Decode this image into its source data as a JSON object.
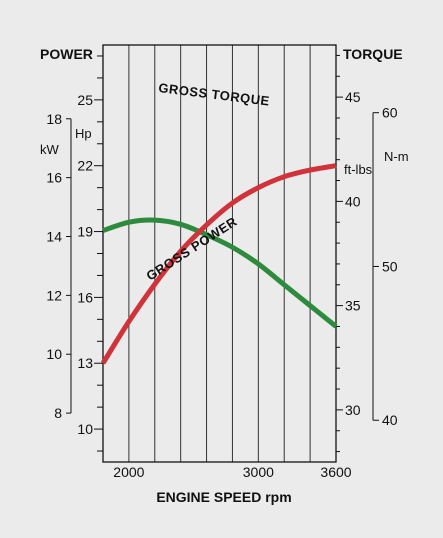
{
  "chart_data": {
    "type": "line",
    "left_title": "POWER",
    "right_title": "TORQUE",
    "xlabel": "ENGINE SPEED rpm",
    "x_ticks": [
      2000,
      3000,
      3600
    ],
    "xlim": [
      1800,
      3600
    ],
    "hp_label": "Hp",
    "hp_ticks": [
      25,
      22,
      19,
      16,
      13,
      10
    ],
    "ylim_hp": [
      8.5,
      27.5
    ],
    "kw_label": "kW",
    "kw_ticks": [
      18,
      16,
      14,
      12,
      10,
      8
    ],
    "ftlbs_label": "ft-lbs",
    "ftlbs_ticks": [
      45,
      40,
      35,
      30
    ],
    "ylim_ftlbs": [
      27.5,
      47.5
    ],
    "nm_label": "N-m",
    "nm_ticks": [
      60,
      50,
      40
    ],
    "series": [
      {
        "name": "GROSS TORQUE",
        "unit": "ft-lbs",
        "color": "#2e8b3e",
        "x": [
          1800,
          2000,
          2200,
          2400,
          2600,
          2800,
          3000,
          3200,
          3400,
          3600
        ],
        "y": [
          38.6,
          39.0,
          39.1,
          38.9,
          38.4,
          37.8,
          37.0,
          36.0,
          35.0,
          34.0
        ]
      },
      {
        "name": "GROSS POWER",
        "unit": "Hp",
        "color": "#d0333a",
        "x": [
          1800,
          2000,
          2200,
          2400,
          2600,
          2800,
          3000,
          3200,
          3400,
          3600
        ],
        "y": [
          13.0,
          14.9,
          16.6,
          18.1,
          19.3,
          20.3,
          21.0,
          21.5,
          21.8,
          22.0
        ]
      }
    ]
  }
}
